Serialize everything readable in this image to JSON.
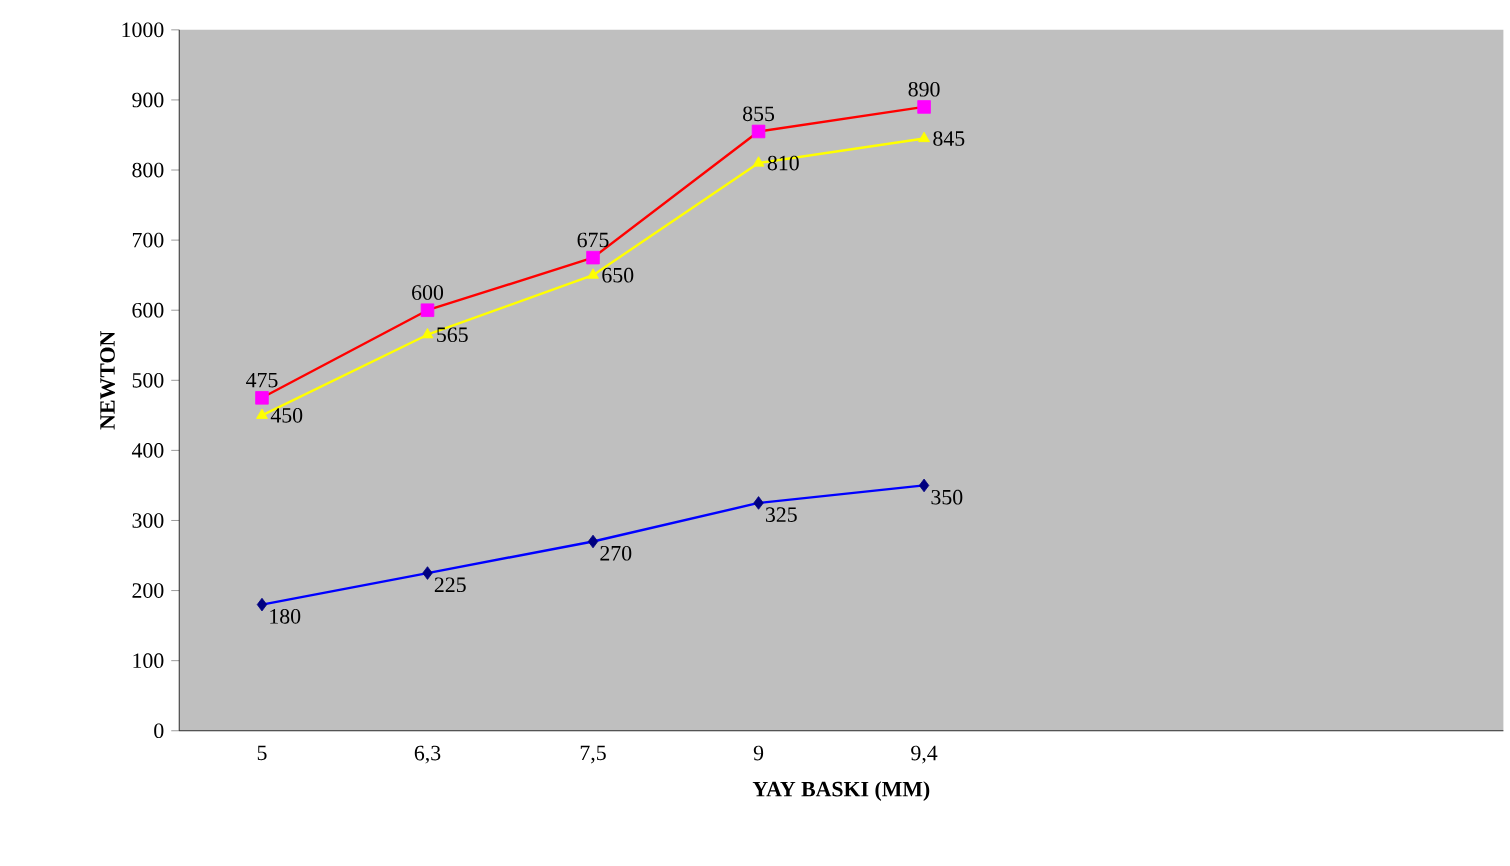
{
  "chart_data": {
    "type": "line",
    "xlabel": "YAY BASKI (MM)",
    "ylabel": "NEWTON",
    "categories": [
      "5",
      "6,3",
      "7,5",
      "9",
      "9,4",
      null,
      null,
      null
    ],
    "series": [
      {
        "color": "#ff0000",
        "colors": [
          "#ff00ff",
          "#ff00ff",
          "#ff00ff",
          "#ff00ff",
          "#ff00ff",
          null,
          null,
          null
        ],
        "marker": "square",
        "values": [
          475,
          600,
          675,
          855,
          890,
          null,
          null,
          null
        ]
      },
      {
        "color": "#ffff00",
        "colors": [
          "#ffff00",
          "#ffff00",
          "#ffff00",
          "#ffff00",
          "#ffff00",
          null,
          null,
          null
        ],
        "marker": "triangle",
        "values": [
          450,
          565,
          650,
          810,
          845,
          null,
          null,
          null
        ]
      },
      {
        "color": "#0000ff",
        "colors": [
          "#000080",
          "#000080",
          "#000080",
          "#000080",
          "#000080",
          null,
          null,
          null
        ],
        "marker": "diamond",
        "values": [
          180,
          225,
          270,
          325,
          350,
          null,
          null,
          null
        ]
      }
    ],
    "ylim": [
      0,
      1000
    ],
    "yticks": [
      0,
      100,
      200,
      300,
      400,
      500,
      600,
      700,
      800,
      900,
      1000
    ],
    "data_labels": true
  }
}
